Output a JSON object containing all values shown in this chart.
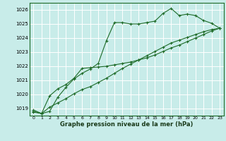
{
  "xlabel": "Graphe pression niveau de la mer (hPa)",
  "background_color": "#c8ece9",
  "grid_color": "#ffffff",
  "line_color": "#1e6b28",
  "x_ticks": [
    0,
    1,
    2,
    3,
    4,
    5,
    6,
    7,
    8,
    9,
    10,
    11,
    12,
    13,
    14,
    15,
    16,
    17,
    18,
    19,
    20,
    21,
    22,
    23
  ],
  "ylim": [
    1018.5,
    1026.5
  ],
  "xlim": [
    -0.5,
    23.5
  ],
  "yticks": [
    1019,
    1020,
    1021,
    1022,
    1023,
    1024,
    1025,
    1026
  ],
  "line1": [
    1018.8,
    1018.65,
    1018.8,
    1019.8,
    1020.5,
    1021.1,
    1021.5,
    1021.8,
    1022.2,
    1023.8,
    1025.1,
    1025.1,
    1025.0,
    1025.0,
    1025.1,
    1025.2,
    1025.75,
    1026.1,
    1025.6,
    1025.7,
    1025.6,
    1025.25,
    1025.05,
    1024.7
  ],
  "line2": [
    1018.9,
    1018.65,
    1019.9,
    1020.4,
    1020.7,
    1021.15,
    1021.85,
    1021.9,
    1021.95,
    1022.0,
    1022.1,
    1022.2,
    1022.3,
    1022.45,
    1022.6,
    1022.8,
    1023.05,
    1023.3,
    1023.5,
    1023.75,
    1024.0,
    1024.25,
    1024.5,
    1024.7
  ],
  "line3": [
    1018.75,
    1018.65,
    1019.1,
    1019.4,
    1019.7,
    1020.05,
    1020.35,
    1020.55,
    1020.85,
    1021.15,
    1021.5,
    1021.85,
    1022.15,
    1022.45,
    1022.75,
    1023.05,
    1023.35,
    1023.65,
    1023.85,
    1024.05,
    1024.25,
    1024.45,
    1024.6,
    1024.7
  ]
}
